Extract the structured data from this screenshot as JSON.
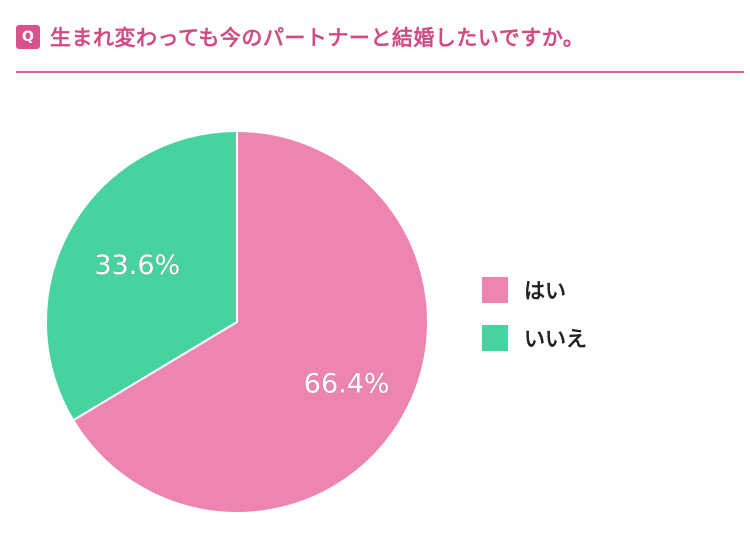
{
  "header": {
    "badge": "Q",
    "question": "生まれ変わっても今のパートナーと結婚したいですか。"
  },
  "chart_data": {
    "type": "pie",
    "categories": [
      "はい",
      "いいえ"
    ],
    "values": [
      66.4,
      33.6
    ],
    "labels": [
      "66.4%",
      "33.6%"
    ],
    "colors": [
      "#ee84b2",
      "#47d3a0"
    ],
    "start": "12 o'clock, clockwise",
    "legend": "right"
  }
}
